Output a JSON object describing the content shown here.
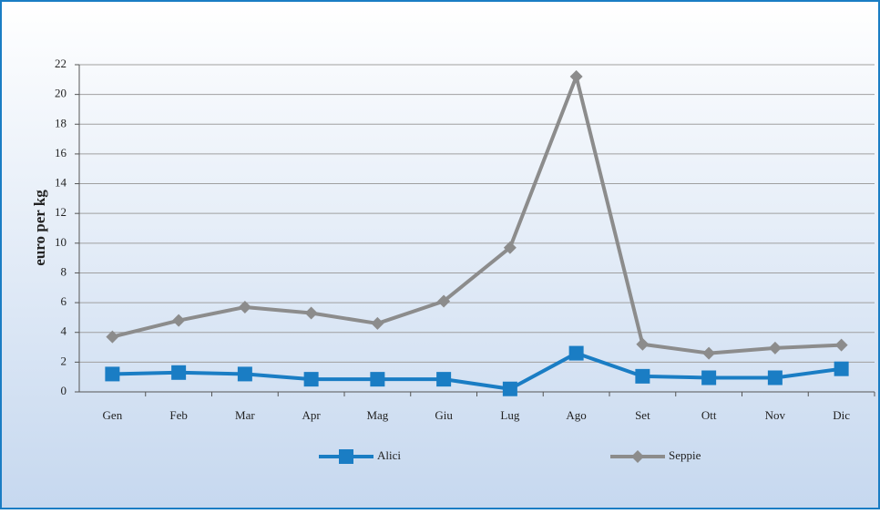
{
  "chart_data": {
    "type": "line",
    "ylabel": "euro per kg",
    "categories": [
      "Gen",
      "Feb",
      "Mar",
      "Apr",
      "Mag",
      "Giu",
      "Lug",
      "Ago",
      "Set",
      "Ott",
      "Nov",
      "Dic"
    ],
    "series": [
      {
        "name": "Alici",
        "color": "#1a7dc4",
        "marker": "square",
        "values": [
          1.2,
          1.3,
          1.2,
          0.85,
          0.85,
          0.85,
          0.2,
          2.6,
          1.05,
          0.95,
          0.95,
          1.55
        ]
      },
      {
        "name": "Seppie",
        "color": "#8c8c8c",
        "marker": "diamond",
        "values": [
          3.7,
          4.8,
          5.7,
          5.3,
          4.6,
          6.1,
          9.7,
          21.2,
          3.2,
          2.6,
          2.95,
          3.15
        ]
      }
    ],
    "ylim": [
      0,
      22
    ],
    "yticks": [
      0,
      2,
      4,
      6,
      8,
      10,
      12,
      14,
      16,
      18,
      20,
      22
    ],
    "grid": true,
    "legend": "bottom"
  }
}
